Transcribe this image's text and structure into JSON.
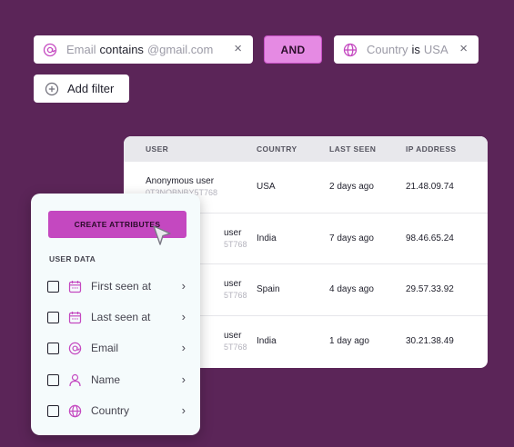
{
  "filters": {
    "email": {
      "field": "Email",
      "operator": "contains",
      "value": "@gmail.com",
      "icon": "at-icon"
    },
    "joiner": "AND",
    "country": {
      "field": "Country",
      "operator": "is",
      "value": "USA",
      "icon": "globe-icon"
    },
    "remove_glyph": "×",
    "add_label": "Add filter"
  },
  "table": {
    "headers": [
      "USER",
      "COUNTRY",
      "LAST SEEN",
      "IP ADDRESS"
    ],
    "rows": [
      {
        "user": "Anonymous user",
        "id": "0T3NOBNBY5T768",
        "country": "USA",
        "last_seen": "2 days ago",
        "ip": "21.48.09.74"
      },
      {
        "user": "user",
        "id": "5T768",
        "country": "India",
        "last_seen": "7 days ago",
        "ip": "98.46.65.24"
      },
      {
        "user": "user",
        "id": "5T768",
        "country": "Spain",
        "last_seen": "4 days ago",
        "ip": "29.57.33.92"
      },
      {
        "user": "user",
        "id": "5T768",
        "country": "India",
        "last_seen": "1 day ago",
        "ip": "30.21.38.49"
      }
    ]
  },
  "panel": {
    "create_label": "CREATE ATTRIBUTES",
    "section_label": "USER DATA",
    "items": [
      {
        "label": "First seen at",
        "icon": "calendar-icon"
      },
      {
        "label": "Last seen at",
        "icon": "calendar-icon"
      },
      {
        "label": "Email",
        "icon": "at-icon"
      },
      {
        "label": "Name",
        "icon": "person-icon"
      },
      {
        "label": "Country",
        "icon": "globe-icon"
      }
    ],
    "chevron_glyph": "›"
  },
  "colors": {
    "background": "#5b2558",
    "accent": "#c448c0",
    "and_button": "#e58ae3"
  }
}
